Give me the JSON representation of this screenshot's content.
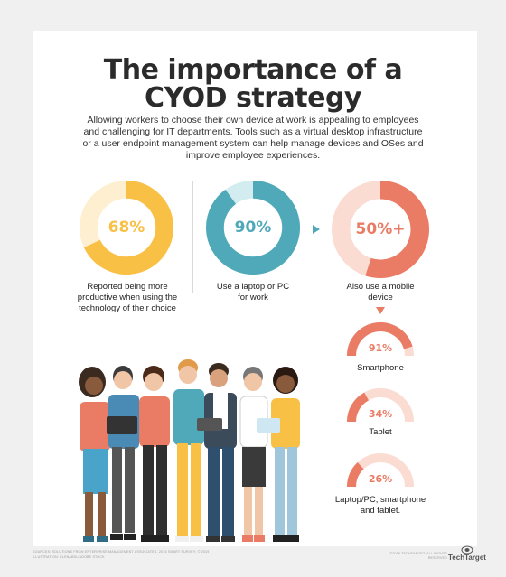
{
  "title_line1": "The importance of a",
  "title_line2": "CYOD strategy",
  "intro": "Allowing workers to choose their own device at work is appealing to employees and challenging for IT departments. Tools such as a virtual desktop infrastructure or a user endpoint management system can help manage devices and OSes and improve employee experiences.",
  "stats": [
    {
      "value": "68%",
      "fraction": 0.68,
      "color": "#f9c046",
      "track": "#fdefcf",
      "label": "Reported being more productive when using the technology of their choice"
    },
    {
      "value": "90%",
      "fraction": 0.9,
      "color": "#4fa9b8",
      "track": "#d3ecef",
      "label": "Use a laptop or PC for work"
    },
    {
      "value": "50%+",
      "fraction": 0.55,
      "color": "#ea7b64",
      "track": "#fbdcd3",
      "label": "Also use a mobile device"
    }
  ],
  "devices": [
    {
      "value": "91%",
      "fraction": 0.91,
      "label": "Smartphone"
    },
    {
      "value": "34%",
      "fraction": 0.34,
      "label": "Tablet"
    },
    {
      "value": "26%",
      "fraction": 0.26,
      "label": "Laptop/PC, smartphone and tablet."
    }
  ],
  "colors": {
    "accent_coral": "#ea7b64",
    "coral_track": "#fbdcd3",
    "text_dark": "#2b2b2b"
  },
  "footer_sources": "SOURCES: SOLUTIONS FROM ENTERPRISE MANAGEMENT ASSOCIATES, 2016 SMART SURVEY; © 2019",
  "footer_illustration": "ILLUSTRATION: ELENABSL/ADOBE STOCK",
  "footer_rights": "©2019 TECHTARGET. ALL RIGHTS RESERVED",
  "brand": "TechTarget"
}
